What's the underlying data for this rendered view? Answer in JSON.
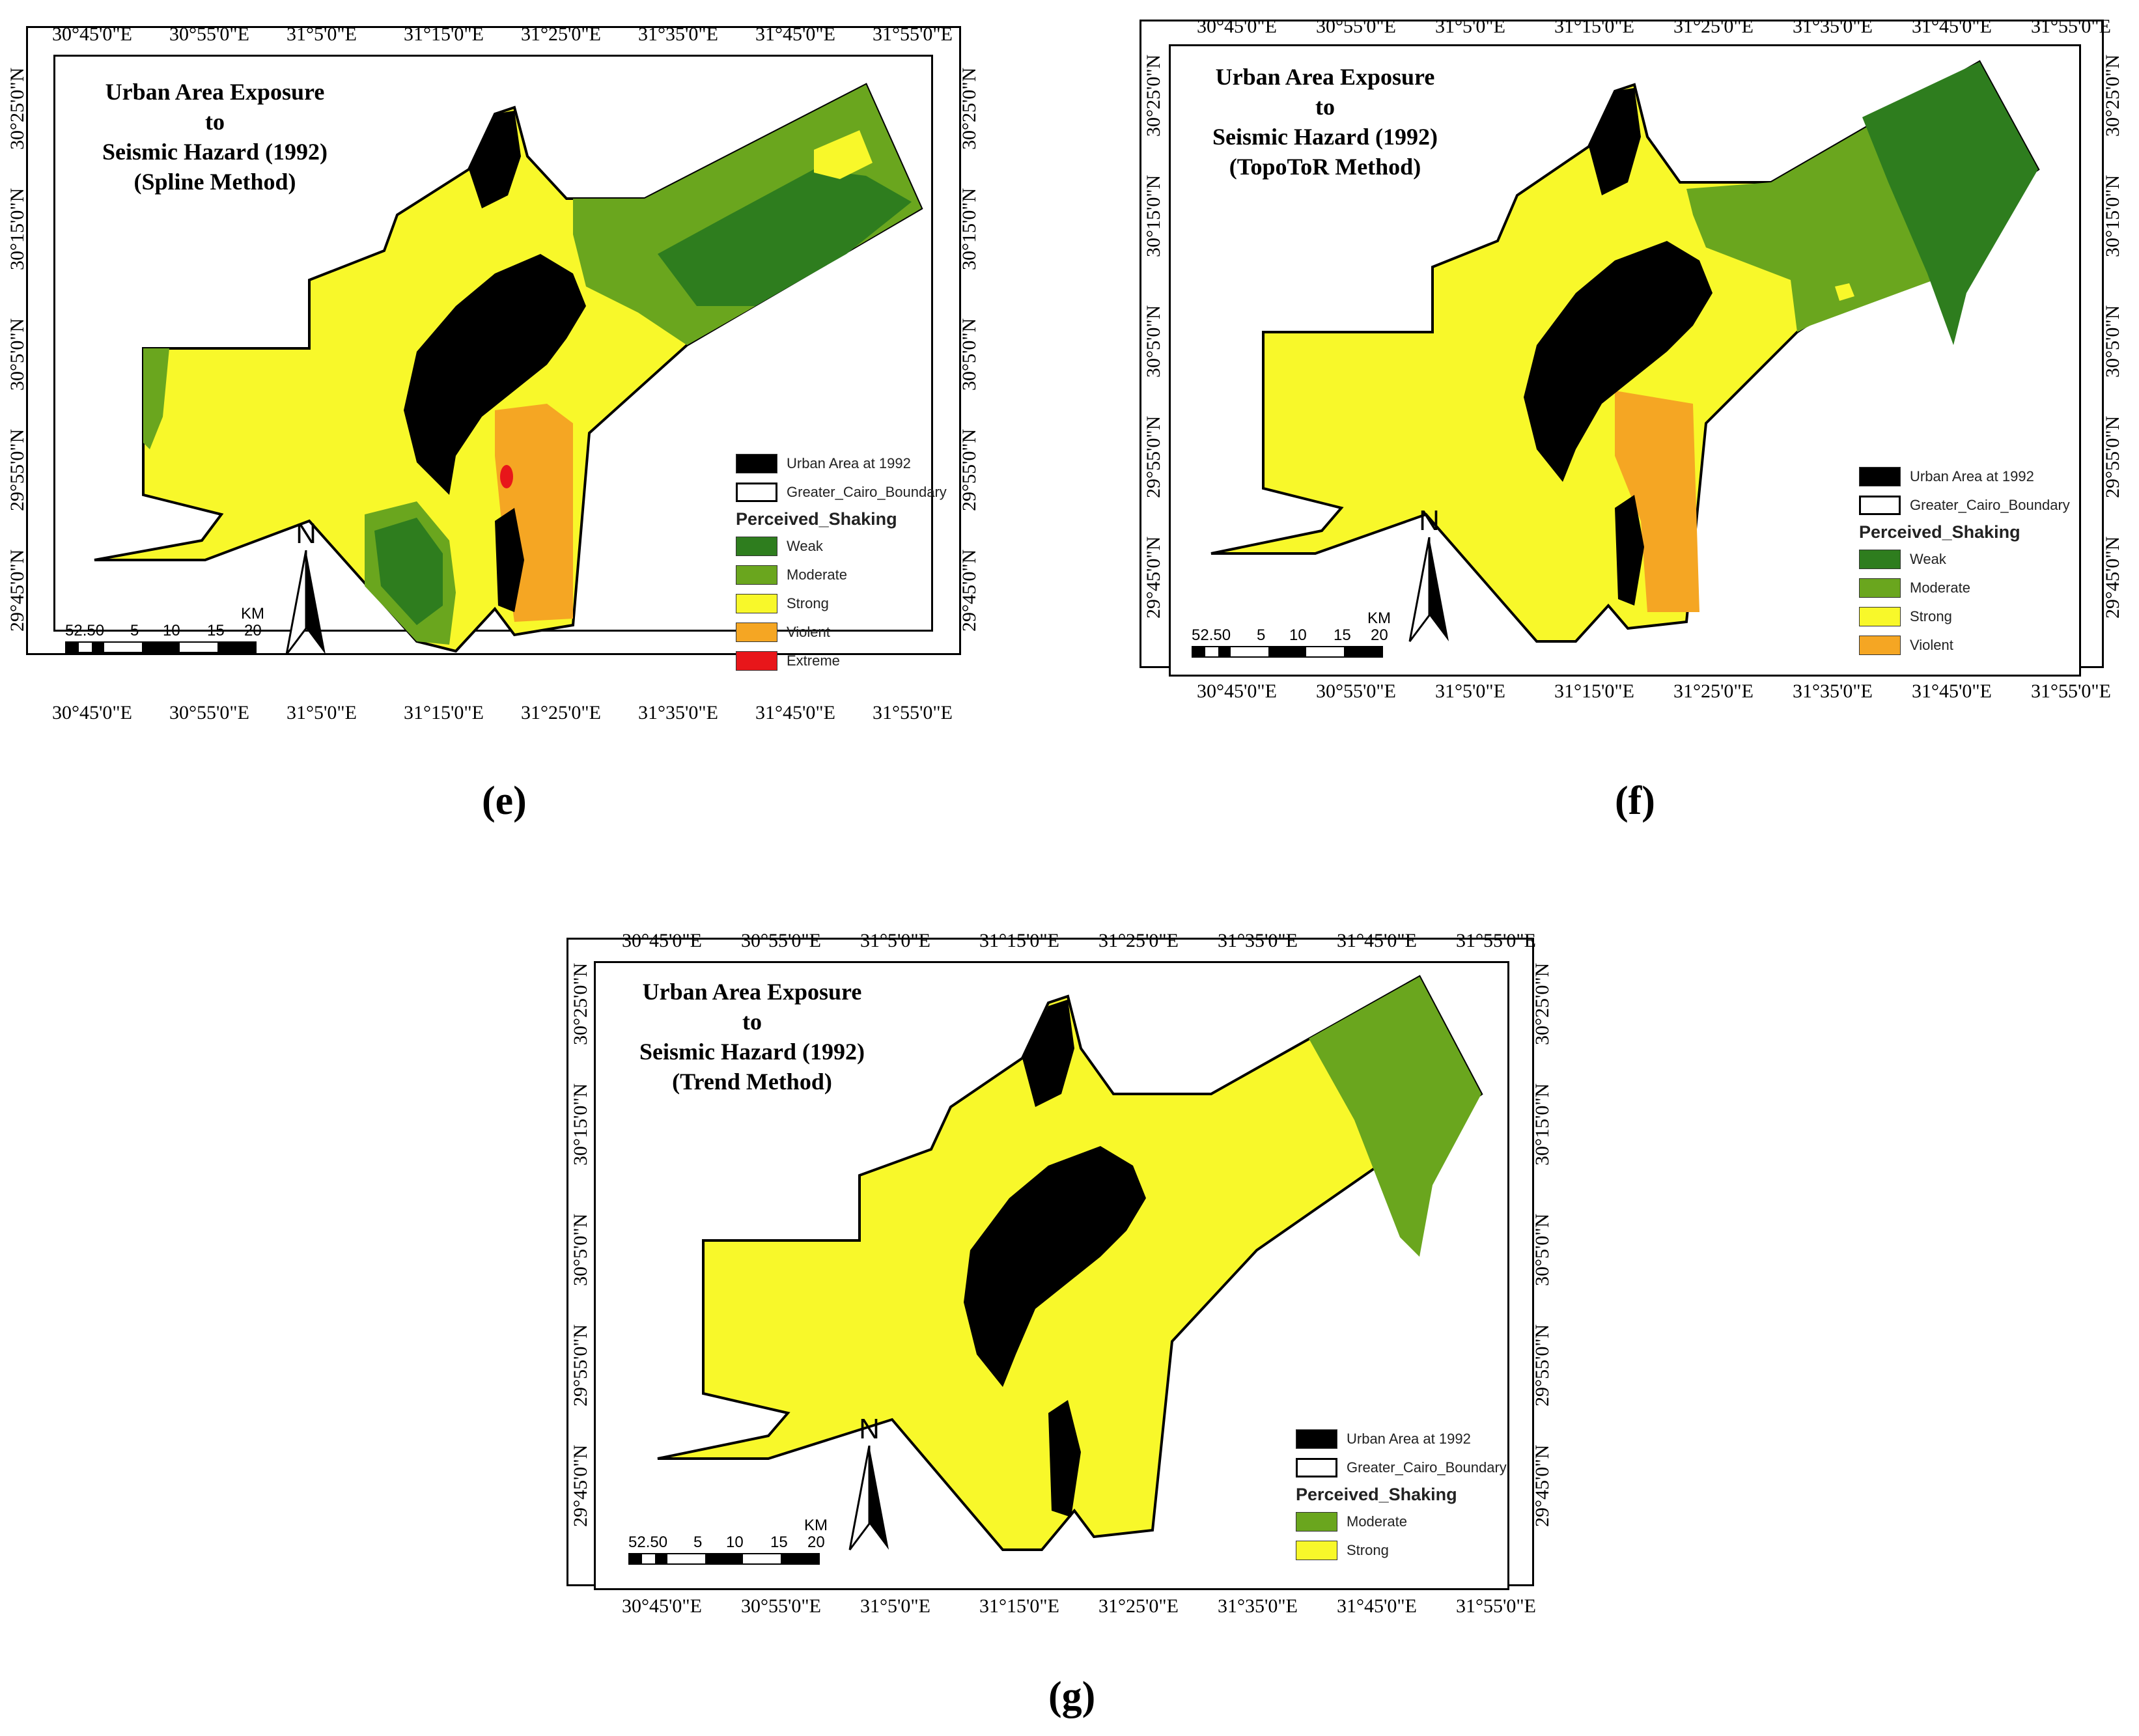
{
  "panels": [
    {
      "id": "e",
      "caption": "(e)",
      "title_lines": [
        "Urban Area Exposure",
        "to",
        "Seismic Hazard (1992)",
        "(Spline Method)"
      ],
      "legend": {
        "urban": "Urban Area at 1992",
        "boundary": "Greater_Cairo_Boundary",
        "heading": "Perceived_Shaking",
        "classes": [
          {
            "label": "Weak",
            "color": "#2e7d1e"
          },
          {
            "label": "Moderate",
            "color": "#6aa61e"
          },
          {
            "label": "Strong",
            "color": "#f8f82a"
          },
          {
            "label": "Violent",
            "color": "#f5a623"
          },
          {
            "label": "Extreme",
            "color": "#e8161a"
          }
        ]
      }
    },
    {
      "id": "f",
      "caption": "(f)",
      "title_lines": [
        "Urban Area Exposure",
        "to",
        "Seismic Hazard (1992)",
        "(TopoToR Method)"
      ],
      "legend": {
        "urban": "Urban Area at 1992",
        "boundary": "Greater_Cairo_Boundary",
        "heading": "Perceived_Shaking",
        "classes": [
          {
            "label": "Weak",
            "color": "#2e7d1e"
          },
          {
            "label": "Moderate",
            "color": "#6aa61e"
          },
          {
            "label": "Strong",
            "color": "#f8f82a"
          },
          {
            "label": "Violent",
            "color": "#f5a623"
          }
        ]
      }
    },
    {
      "id": "g",
      "caption": "(g)",
      "title_lines": [
        "Urban Area Exposure",
        "to",
        "Seismic Hazard (1992)",
        "(Trend Method)"
      ],
      "legend": {
        "urban": "Urban Area at 1992",
        "boundary": "Greater_Cairo_Boundary",
        "heading": "Perceived_Shaking",
        "classes": [
          {
            "label": "Moderate",
            "color": "#6aa61e"
          },
          {
            "label": "Strong",
            "color": "#f8f82a"
          }
        ]
      }
    }
  ],
  "lon_ticks": [
    "30°45'0\"E",
    "30°55'0\"E",
    "31°5'0\"E",
    "31°15'0\"E",
    "31°25'0\"E",
    "31°35'0\"E",
    "31°45'0\"E",
    "31°55'0\"E"
  ],
  "lat_ticks": [
    "30°25'0\"N",
    "30°15'0\"N",
    "30°5'0\"N",
    "29°55'0\"N",
    "29°45'0\"N"
  ],
  "north_label": "N",
  "scale": {
    "unit": "KM",
    "labels": [
      "5",
      "2.5",
      "0",
      "5",
      "10",
      "15",
      "20"
    ]
  },
  "colors": {
    "urban": "#000000",
    "boundary": "#000000"
  }
}
